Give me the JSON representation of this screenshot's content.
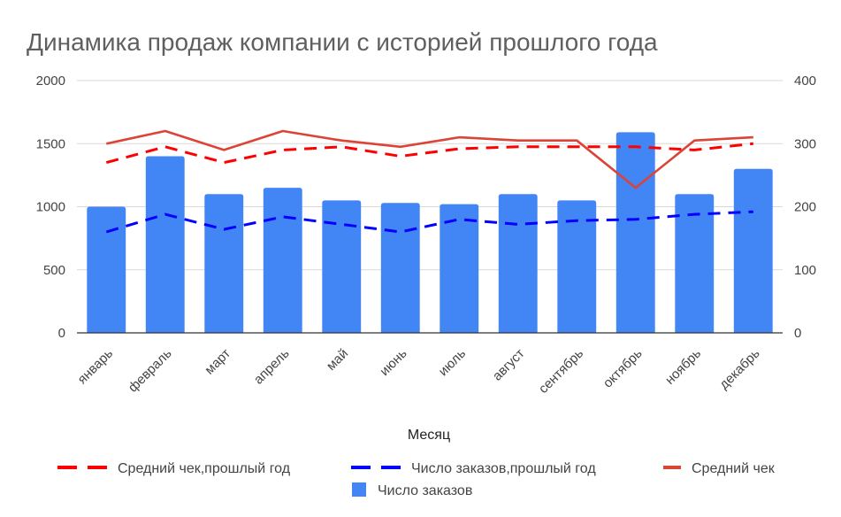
{
  "chart_data": {
    "type": "bar",
    "title": "Динамика продаж компании с историей прошлого года",
    "xlabel": "Месяц",
    "ylabel": "",
    "ylabel_right": "",
    "categories": [
      "январь",
      "февраль",
      "март",
      "апрель",
      "май",
      "июнь",
      "июль",
      "август",
      "сентябрь",
      "октябрь",
      "ноябрь",
      "декабрь"
    ],
    "ylim": [
      0,
      2000
    ],
    "yticks": [
      "0",
      "500",
      "1000",
      "1500",
      "2000"
    ],
    "ylim_right": [
      0,
      400
    ],
    "yticks_right": [
      "0",
      "100",
      "200",
      "300",
      "400"
    ],
    "grid": true,
    "legend_position": "bottom",
    "series": [
      {
        "name": "Средний чек,прошлый год",
        "type": "line",
        "style": "dashed",
        "axis": "right",
        "color": "#ff0000",
        "values": [
          270,
          295,
          270,
          290,
          295,
          280,
          292,
          295,
          295,
          295,
          290,
          300
        ]
      },
      {
        "name": "Число заказов,прошлый год",
        "type": "line",
        "style": "dashed",
        "axis": "left",
        "color": "#0000ff",
        "values": [
          800,
          940,
          820,
          920,
          860,
          800,
          900,
          860,
          890,
          900,
          940,
          960
        ]
      },
      {
        "name": "Средний чек",
        "type": "line",
        "style": "solid",
        "axis": "right",
        "color": "#db4437",
        "values": [
          300,
          320,
          290,
          320,
          305,
          295,
          310,
          305,
          305,
          230,
          305,
          310
        ]
      },
      {
        "name": "Число заказов",
        "type": "bar",
        "axis": "left",
        "color": "#4285f4",
        "values": [
          1000,
          1400,
          1100,
          1150,
          1050,
          1030,
          1020,
          1100,
          1050,
          1590,
          1100,
          1300
        ]
      }
    ]
  }
}
